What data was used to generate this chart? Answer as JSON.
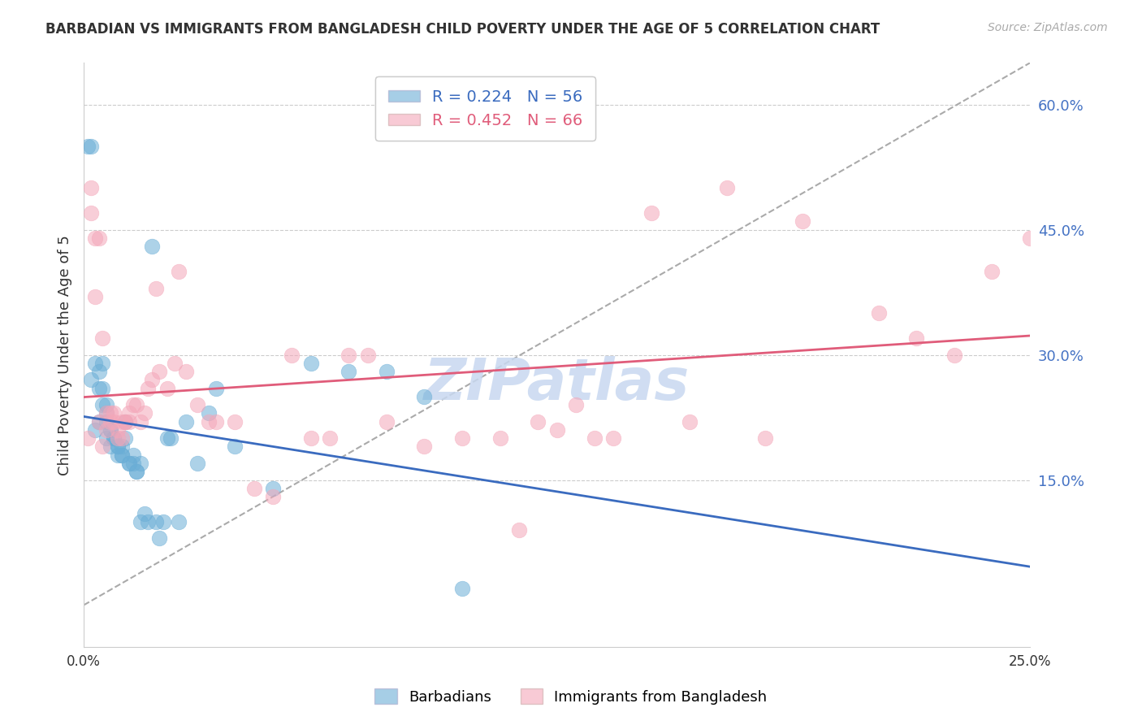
{
  "title": "BARBADIAN VS IMMIGRANTS FROM BANGLADESH CHILD POVERTY UNDER THE AGE OF 5 CORRELATION CHART",
  "source": "Source: ZipAtlas.com",
  "ylabel": "Child Poverty Under the Age of 5",
  "xlim": [
    0.0,
    0.25
  ],
  "ylim": [
    -0.05,
    0.65
  ],
  "xticks": [
    0.0,
    0.05,
    0.1,
    0.15,
    0.2,
    0.25
  ],
  "xticklabels": [
    "0.0%",
    "",
    "",
    "",
    "",
    "25.0%"
  ],
  "yticks_right": [
    0.15,
    0.3,
    0.45,
    0.6
  ],
  "ytick_labels_right": [
    "15.0%",
    "30.0%",
    "45.0%",
    "60.0%"
  ],
  "grid_color": "#cccccc",
  "background_color": "#ffffff",
  "blue_color": "#6baed6",
  "pink_color": "#f4a7b9",
  "blue_line_color": "#3a6bbf",
  "pink_line_color": "#e05c7a",
  "watermark_text": "ZIPatlas",
  "watermark_color": "#c8d8f0",
  "legend_R1": "R = 0.224",
  "legend_N1": "N = 56",
  "legend_R2": "R = 0.452",
  "legend_N2": "N = 66",
  "legend_label1": "Barbadians",
  "legend_label2": "Immigrants from Bangladesh",
  "barbadians_x": [
    0.001,
    0.002,
    0.002,
    0.003,
    0.003,
    0.004,
    0.004,
    0.004,
    0.005,
    0.005,
    0.005,
    0.006,
    0.006,
    0.006,
    0.006,
    0.007,
    0.007,
    0.007,
    0.008,
    0.008,
    0.009,
    0.009,
    0.009,
    0.01,
    0.01,
    0.01,
    0.011,
    0.011,
    0.012,
    0.012,
    0.013,
    0.013,
    0.014,
    0.014,
    0.015,
    0.015,
    0.016,
    0.017,
    0.018,
    0.019,
    0.02,
    0.021,
    0.022,
    0.023,
    0.025,
    0.027,
    0.03,
    0.033,
    0.035,
    0.04,
    0.05,
    0.06,
    0.07,
    0.08,
    0.09,
    0.1
  ],
  "barbadians_y": [
    0.55,
    0.55,
    0.27,
    0.21,
    0.29,
    0.28,
    0.26,
    0.22,
    0.29,
    0.26,
    0.24,
    0.23,
    0.24,
    0.22,
    0.2,
    0.21,
    0.21,
    0.19,
    0.2,
    0.2,
    0.19,
    0.19,
    0.18,
    0.18,
    0.19,
    0.18,
    0.22,
    0.2,
    0.17,
    0.17,
    0.18,
    0.17,
    0.16,
    0.16,
    0.17,
    0.1,
    0.11,
    0.1,
    0.43,
    0.1,
    0.08,
    0.1,
    0.2,
    0.2,
    0.1,
    0.22,
    0.17,
    0.23,
    0.26,
    0.19,
    0.14,
    0.29,
    0.28,
    0.28,
    0.25,
    0.02
  ],
  "bangladesh_x": [
    0.001,
    0.002,
    0.002,
    0.003,
    0.003,
    0.004,
    0.004,
    0.005,
    0.005,
    0.006,
    0.006,
    0.007,
    0.007,
    0.008,
    0.008,
    0.009,
    0.009,
    0.01,
    0.01,
    0.011,
    0.011,
    0.012,
    0.012,
    0.013,
    0.014,
    0.015,
    0.016,
    0.017,
    0.018,
    0.019,
    0.02,
    0.022,
    0.024,
    0.025,
    0.027,
    0.03,
    0.033,
    0.035,
    0.04,
    0.045,
    0.05,
    0.055,
    0.06,
    0.065,
    0.07,
    0.075,
    0.08,
    0.09,
    0.1,
    0.11,
    0.12,
    0.13,
    0.15,
    0.17,
    0.19,
    0.21,
    0.22,
    0.23,
    0.24,
    0.25,
    0.18,
    0.16,
    0.14,
    0.135,
    0.125,
    0.115
  ],
  "bangladesh_y": [
    0.2,
    0.47,
    0.5,
    0.44,
    0.37,
    0.44,
    0.22,
    0.32,
    0.19,
    0.21,
    0.23,
    0.23,
    0.22,
    0.22,
    0.23,
    0.21,
    0.2,
    0.22,
    0.2,
    0.22,
    0.22,
    0.23,
    0.22,
    0.24,
    0.24,
    0.22,
    0.23,
    0.26,
    0.27,
    0.38,
    0.28,
    0.26,
    0.29,
    0.4,
    0.28,
    0.24,
    0.22,
    0.22,
    0.22,
    0.14,
    0.13,
    0.3,
    0.2,
    0.2,
    0.3,
    0.3,
    0.22,
    0.19,
    0.2,
    0.2,
    0.22,
    0.24,
    0.47,
    0.5,
    0.46,
    0.35,
    0.32,
    0.3,
    0.4,
    0.44,
    0.2,
    0.22,
    0.2,
    0.2,
    0.21,
    0.09
  ]
}
